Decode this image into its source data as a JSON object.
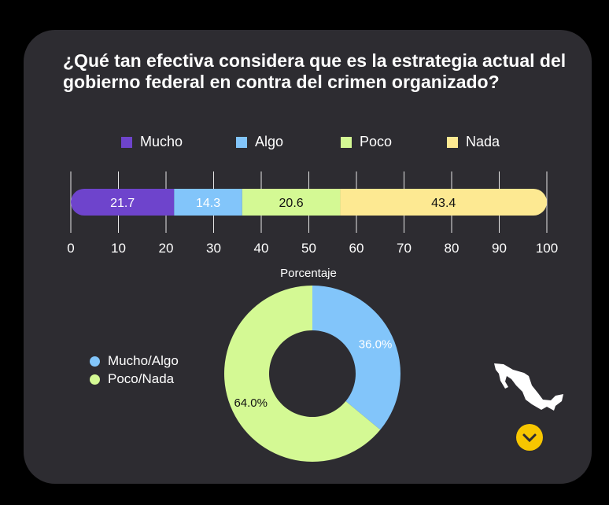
{
  "title": "¿Qué tan efectiva considera que es la estrategia actual del gobierno federal en contra del crimen organizado?",
  "chart_data": [
    {
      "type": "bar",
      "orientation": "horizontal",
      "stacked": true,
      "series": [
        {
          "name": "Mucho",
          "values": [
            21.7
          ],
          "color": "#6e44cc"
        },
        {
          "name": "Algo",
          "values": [
            14.3
          ],
          "color": "#82c5fa"
        },
        {
          "name": "Poco",
          "values": [
            20.6
          ],
          "color": "#d4f994"
        },
        {
          "name": "Nada",
          "values": [
            43.4
          ],
          "color": "#fde992"
        }
      ],
      "xlim": [
        0,
        100
      ],
      "xticks": [
        0,
        10,
        20,
        30,
        40,
        50,
        60,
        70,
        80,
        90,
        100
      ],
      "xlabel": "Porcentaje",
      "grid": true,
      "legend": "top"
    },
    {
      "type": "pie",
      "donut": true,
      "slices": [
        {
          "label": "Mucho/Algo",
          "value": 36.0,
          "display": "36.0%",
          "color": "#82c5fa"
        },
        {
          "label": "Poco/Nada",
          "value": 64.0,
          "display": "64.0%",
          "color": "#d4f994"
        }
      ],
      "legend": "left"
    }
  ],
  "icons": {
    "map": "mexico-map-icon",
    "scroll": "chevron-down-icon",
    "scroll_color": "#f7c600"
  }
}
